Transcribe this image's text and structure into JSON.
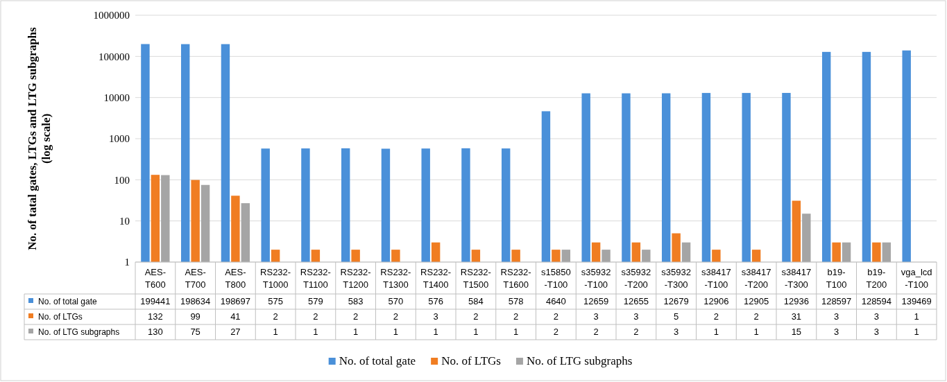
{
  "chart_data": {
    "type": "bar",
    "ylabel": "No. of tatal gates, LTGs and LTG subgraphs (log scale)",
    "categories": [
      "AES-T600",
      "AES-T700",
      "AES-T800",
      "RS232-T1000",
      "RS232-T1100",
      "RS232-T1200",
      "RS232-T1300",
      "RS232-T1400",
      "RS232-T1500",
      "RS232-T1600",
      "s15850-T100",
      "s35932-T100",
      "s35932-T200",
      "s35932-T300",
      "s38417-T100",
      "s38417-T200",
      "s38417-T300",
      "b19-T100",
      "b19-T200",
      "vga_lcd-T100"
    ],
    "series": [
      {
        "name": "No. of total gate",
        "color": "#4a90d9",
        "values": [
          199441,
          198634,
          198697,
          575,
          579,
          583,
          570,
          576,
          584,
          578,
          4640,
          12659,
          12655,
          12679,
          12906,
          12905,
          12936,
          128597,
          128594,
          139469
        ]
      },
      {
        "name": "No. of LTGs",
        "color": "#f07d22",
        "values": [
          132,
          99,
          41,
          2,
          2,
          2,
          2,
          3,
          2,
          2,
          2,
          3,
          3,
          5,
          2,
          2,
          31,
          3,
          3,
          1
        ]
      },
      {
        "name": "No. of LTG subgraphs",
        "color": "#a5a5a5",
        "values": [
          130,
          75,
          27,
          1,
          1,
          1,
          1,
          1,
          1,
          1,
          2,
          2,
          2,
          3,
          1,
          1,
          15,
          3,
          3,
          1
        ]
      }
    ],
    "log": true,
    "ylim": [
      1,
      1000000
    ],
    "yticks": [
      1,
      10,
      100,
      1000,
      10000,
      100000,
      1000000
    ],
    "grid": "y",
    "data_labels": true,
    "legend": "bottom"
  }
}
